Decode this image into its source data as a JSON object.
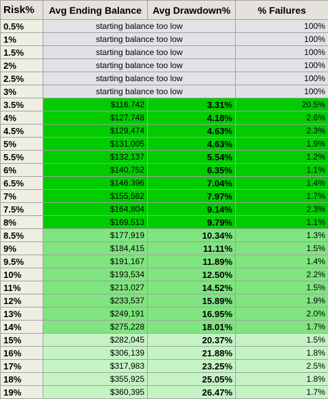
{
  "table": {
    "header": [
      "Risk%",
      "Avg Ending Balance",
      "Avg Drawdown%",
      "% Failures"
    ],
    "rows": [
      [
        "0.5%",
        "starting balance too low",
        "100%"
      ],
      [
        "1%",
        "starting balance too low",
        "100%"
      ],
      [
        "1.5%",
        "starting balance too low",
        "100%"
      ],
      [
        "2%",
        "starting balance too low",
        "100%"
      ],
      [
        "2.5%",
        "starting balance too low",
        "100%"
      ],
      [
        "3%",
        "starting balance too low",
        "100%"
      ],
      [
        "3.5%",
        "$116,742",
        "3.31%",
        "20.5%"
      ],
      [
        "4%",
        "$127,748",
        "4.18%",
        "2.6%"
      ],
      [
        "4.5%",
        "$129,474",
        "4.63%",
        "2.3%"
      ],
      [
        "5%",
        "$131,005",
        "4.63%",
        "1.9%"
      ],
      [
        "5.5%",
        "$132,137",
        "5.54%",
        "1.2%"
      ],
      [
        "6%",
        "$140,752",
        "6.35%",
        "1.1%"
      ],
      [
        "6.5%",
        "$146,396",
        "7.04%",
        "1.4%"
      ],
      [
        "7%",
        "$155,562",
        "7.97%",
        "1.7%"
      ],
      [
        "7.5%",
        "$164,804",
        "9.14%",
        "2.3%"
      ],
      [
        "8%",
        "$169,513",
        "9.79%",
        "1.1%"
      ],
      [
        "8.5%",
        "$177,919",
        "10.34%",
        "1.3%"
      ],
      [
        "9%",
        "$184,415",
        "11.11%",
        "1.5%"
      ],
      [
        "9.5%",
        "$191,167",
        "11.89%",
        "1.4%"
      ],
      [
        "10%",
        "$193,534",
        "12.50%",
        "2.2%"
      ],
      [
        "11%",
        "$213,027",
        "14.52%",
        "1.5%"
      ],
      [
        "12%",
        "$233,537",
        "15.89%",
        "1.9%"
      ],
      [
        "13%",
        "$249,191",
        "16.95%",
        "2.0%"
      ],
      [
        "14%",
        "$275,228",
        "18.01%",
        "1.7%"
      ],
      [
        "15%",
        "$282,045",
        "20.37%",
        "1.5%"
      ],
      [
        "16%",
        "$306,139",
        "21.88%",
        "1.8%"
      ],
      [
        "17%",
        "$317,983",
        "23.25%",
        "2.5%"
      ],
      [
        "18%",
        "$355,925",
        "25.05%",
        "1.8%"
      ],
      [
        "19%",
        "$360,395",
        "26.47%",
        "1.7%"
      ]
    ]
  }
}
